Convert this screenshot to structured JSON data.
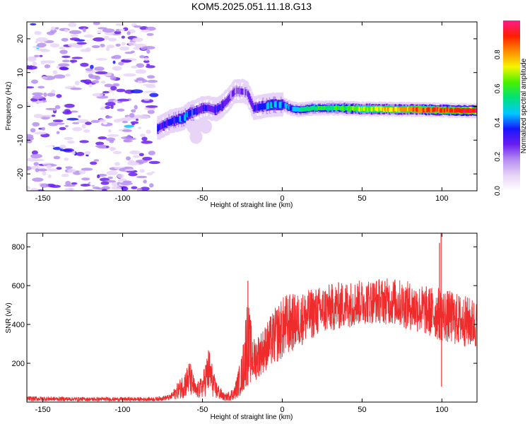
{
  "title": "KOM5.2025.051.11.18.G13",
  "chart_data": [
    {
      "type": "heatmap",
      "xlabel": "Height of straight line (km)",
      "ylabel": "Frequency (Hz)",
      "xlim": [
        -160,
        122
      ],
      "ylim": [
        -25,
        25
      ],
      "xticks": [
        -150,
        -100,
        -50,
        0,
        50,
        100
      ],
      "yticks": [
        -20,
        -10,
        0,
        10,
        20
      ],
      "colorbar": {
        "label": "Normalized spectral amplitude",
        "range": [
          0,
          1
        ],
        "ticks": [
          0.0,
          0.2,
          0.4,
          0.6,
          0.8
        ],
        "colors": [
          "#ffffff",
          "#e8d4f7",
          "#b68ef0",
          "#6a1df0",
          "#1616ff",
          "#00c8ff",
          "#00e07a",
          "#46f000",
          "#f5f500",
          "#ff8c00",
          "#ff1e00",
          "#ff1a8c"
        ]
      },
      "noise_region": {
        "x": [
          -160,
          -80
        ],
        "amplitude": 0.25
      },
      "ridge": [
        {
          "x": -78,
          "y": -6.5,
          "w": 0.35
        },
        {
          "x": -70,
          "y": -4.5,
          "w": 0.4
        },
        {
          "x": -62,
          "y": -3.5,
          "w": 0.45
        },
        {
          "x": -58,
          "y": -2,
          "w": 0.45
        },
        {
          "x": -54,
          "y": -1.5,
          "w": 0.35
        },
        {
          "x": -50,
          "y": -0.5,
          "w": 0.35
        },
        {
          "x": -46,
          "y": -0.5,
          "w": 0.35
        },
        {
          "x": -42,
          "y": -1,
          "w": 0.35
        },
        {
          "x": -38,
          "y": 0,
          "w": 0.35
        },
        {
          "x": -34,
          "y": 2,
          "w": 0.3
        },
        {
          "x": -30,
          "y": 4.5,
          "w": 0.3
        },
        {
          "x": -25,
          "y": 4.5,
          "w": 0.3
        },
        {
          "x": -22,
          "y": 4,
          "w": 0.25
        },
        {
          "x": -18,
          "y": -0.5,
          "w": 0.35
        },
        {
          "x": -12,
          "y": 0,
          "w": 0.4
        },
        {
          "x": -6,
          "y": 0.5,
          "w": 0.5
        },
        {
          "x": 0,
          "y": 0.5,
          "w": 0.45
        },
        {
          "x": 5,
          "y": -0.5,
          "w": 0.45
        },
        {
          "x": 10,
          "y": -1,
          "w": 0.55
        },
        {
          "x": 20,
          "y": -0.5,
          "w": 0.6
        },
        {
          "x": 30,
          "y": -0.5,
          "w": 0.6
        },
        {
          "x": 40,
          "y": -0.6,
          "w": 0.65
        },
        {
          "x": 50,
          "y": -0.8,
          "w": 0.72
        },
        {
          "x": 60,
          "y": -0.8,
          "w": 0.78
        },
        {
          "x": 70,
          "y": -0.9,
          "w": 0.82
        },
        {
          "x": 80,
          "y": -0.9,
          "w": 0.85
        },
        {
          "x": 90,
          "y": -1.0,
          "w": 0.9
        },
        {
          "x": 100,
          "y": -1.1,
          "w": 0.93
        },
        {
          "x": 110,
          "y": -1.2,
          "w": 0.96
        },
        {
          "x": 122,
          "y": -1.3,
          "w": 1.0
        }
      ],
      "side_blobs": [
        {
          "x": -56,
          "y": -6,
          "w": 0.3
        },
        {
          "x": -54,
          "y": -9,
          "w": 0.35
        },
        {
          "x": -52,
          "y": -5.5,
          "w": 0.25
        },
        {
          "x": -48,
          "y": -6,
          "w": 0.25
        }
      ]
    },
    {
      "type": "line",
      "xlabel": "Height of straight line (km)",
      "ylabel": "SNR (v/v)",
      "xlim": [
        -160,
        122
      ],
      "ylim": [
        0,
        870
      ],
      "xticks": [
        -150,
        -100,
        -50,
        0,
        50,
        100
      ],
      "yticks": [
        200,
        400,
        600,
        800
      ],
      "series": [
        {
          "color": "#ee2c2c",
          "envelope": [
            {
              "x": -160,
              "lo": 5,
              "hi": 30
            },
            {
              "x": -120,
              "lo": 5,
              "hi": 25
            },
            {
              "x": -80,
              "lo": 5,
              "hi": 25
            },
            {
              "x": -70,
              "lo": 10,
              "hi": 40
            },
            {
              "x": -62,
              "lo": 20,
              "hi": 150
            },
            {
              "x": -58,
              "lo": 30,
              "hi": 220
            },
            {
              "x": -54,
              "lo": 15,
              "hi": 90
            },
            {
              "x": -50,
              "lo": 20,
              "hi": 140
            },
            {
              "x": -46,
              "lo": 40,
              "hi": 290
            },
            {
              "x": -42,
              "lo": 15,
              "hi": 120
            },
            {
              "x": -36,
              "lo": 5,
              "hi": 40
            },
            {
              "x": -30,
              "lo": 10,
              "hi": 80
            },
            {
              "x": -25,
              "lo": 40,
              "hi": 260
            },
            {
              "x": -22,
              "lo": 80,
              "hi": 560
            },
            {
              "x": -18,
              "lo": 100,
              "hi": 330
            },
            {
              "x": -12,
              "lo": 150,
              "hi": 380
            },
            {
              "x": -5,
              "lo": 190,
              "hi": 480
            },
            {
              "x": 2,
              "lo": 230,
              "hi": 560
            },
            {
              "x": 10,
              "lo": 280,
              "hi": 560
            },
            {
              "x": 20,
              "lo": 330,
              "hi": 590
            },
            {
              "x": 30,
              "lo": 360,
              "hi": 610
            },
            {
              "x": 40,
              "lo": 380,
              "hi": 625
            },
            {
              "x": 50,
              "lo": 400,
              "hi": 630
            },
            {
              "x": 60,
              "lo": 405,
              "hi": 640
            },
            {
              "x": 70,
              "lo": 395,
              "hi": 640
            },
            {
              "x": 80,
              "lo": 370,
              "hi": 620
            },
            {
              "x": 90,
              "lo": 340,
              "hi": 600
            },
            {
              "x": 100,
              "lo": 310,
              "hi": 590
            },
            {
              "x": 110,
              "lo": 290,
              "hi": 560
            },
            {
              "x": 122,
              "lo": 270,
              "hi": 530
            }
          ],
          "spikes": [
            {
              "x": -21.5,
              "y": 625
            },
            {
              "x": 99.5,
              "y": 870
            },
            {
              "x": 99.8,
              "y": 80
            },
            {
              "x": 98.5,
              "y": 820
            }
          ]
        }
      ]
    }
  ]
}
